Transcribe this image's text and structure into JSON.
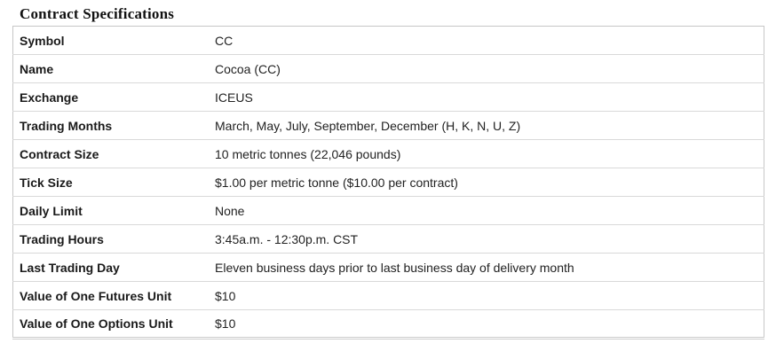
{
  "page": {
    "title": "Contract Specifications"
  },
  "colors": {
    "background": "#ffffff",
    "title_text": "#111111",
    "label_text": "#1a1a1a",
    "value_text": "#222222",
    "outer_border": "#c7c7c7",
    "row_divider": "#d9d9d9"
  },
  "table": {
    "rows": [
      {
        "label": "Symbol",
        "value": "CC"
      },
      {
        "label": "Name",
        "value": "Cocoa (CC)"
      },
      {
        "label": "Exchange",
        "value": "ICEUS"
      },
      {
        "label": "Trading Months",
        "value": "March, May, July, September, December (H, K, N, U, Z)"
      },
      {
        "label": "Contract Size",
        "value": "10 metric tonnes (22,046 pounds)"
      },
      {
        "label": "Tick Size",
        "value": "$1.00 per metric tonne ($10.00 per contract)"
      },
      {
        "label": "Daily Limit",
        "value": "None"
      },
      {
        "label": "Trading Hours",
        "value": "3:45a.m. - 12:30p.m. CST"
      },
      {
        "label": "Last Trading Day",
        "value": "Eleven business days prior to last business day of delivery month"
      },
      {
        "label": "Value of One Futures Unit",
        "value": "$10"
      },
      {
        "label": "Value of One Options Unit",
        "value": "$10"
      }
    ]
  }
}
